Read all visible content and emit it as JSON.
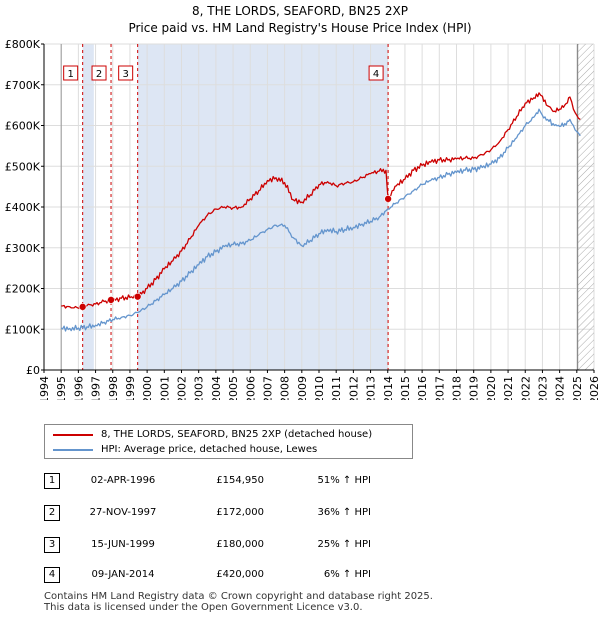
{
  "title_line1": "8, THE LORDS, SEAFORD, BN25 2XP",
  "title_line2": "Price paid vs. HM Land Registry's House Price Index (HPI)",
  "colors": {
    "property": "#cc0000",
    "hpi": "#6495cd",
    "shade": "#dde6f4",
    "grid": "#dddddd",
    "marker_line": "#cc0000"
  },
  "legend": {
    "property_label": "8, THE LORDS, SEAFORD, BN25 2XP (detached house)",
    "hpi_label": "HPI: Average price, detached house, Lewes"
  },
  "sales": [
    {
      "num": "1",
      "date": "02-APR-1996",
      "price": "£154,950",
      "hpi": "51% ↑ HPI"
    },
    {
      "num": "2",
      "date": "27-NOV-1997",
      "price": "£172,000",
      "hpi": "36% ↑ HPI"
    },
    {
      "num": "3",
      "date": "15-JUN-1999",
      "price": "£180,000",
      "hpi": "25% ↑ HPI"
    },
    {
      "num": "4",
      "date": "09-JAN-2014",
      "price": "£420,000",
      "hpi": "6% ↑ HPI"
    }
  ],
  "footer": {
    "line1": "Contains HM Land Registry data © Crown copyright and database right 2025.",
    "line2": "This data is licensed under the Open Government Licence v3.0."
  },
  "chart_data": {
    "type": "line",
    "title": "8, THE LORDS, SEAFORD, BN25 2XP — Price paid vs. HM Land Registry's House Price Index (HPI)",
    "xlabel": "",
    "ylabel": "",
    "xlim": [
      1994,
      2026
    ],
    "ylim": [
      0,
      800000
    ],
    "y_ticks": [
      0,
      100000,
      200000,
      300000,
      400000,
      500000,
      600000,
      700000,
      800000
    ],
    "y_tick_labels": [
      "£0",
      "£100K",
      "£200K",
      "£300K",
      "£400K",
      "£500K",
      "£600K",
      "£700K",
      "£800K"
    ],
    "x_ticks": [
      "1994",
      "1995",
      "1996",
      "1997",
      "1998",
      "1999",
      "2000",
      "2001",
      "2002",
      "2003",
      "2004",
      "2005",
      "2006",
      "2007",
      "2008",
      "2009",
      "2010",
      "2011",
      "2012",
      "2013",
      "2014",
      "2015",
      "2016",
      "2017",
      "2018",
      "2019",
      "2020",
      "2021",
      "2022",
      "2023",
      "2024",
      "2025",
      "2026"
    ],
    "data_start_year": 1995,
    "data_end_year": 2025.3,
    "hatch_from_year": 2025.05,
    "shaded_ranges": [
      [
        1996.25,
        1996.9
      ],
      [
        1999.45,
        2014.02
      ]
    ],
    "sale_markers": [
      {
        "label": "1",
        "year": 1996.25,
        "price": 154950
      },
      {
        "label": "2",
        "year": 1997.9,
        "price": 172000
      },
      {
        "label": "3",
        "year": 1999.45,
        "price": 180000
      },
      {
        "label": "4",
        "year": 2014.02,
        "price": 420000
      }
    ],
    "series": [
      {
        "name": "8, THE LORDS, SEAFORD, BN25 2XP (detached house)",
        "color": "#cc0000",
        "x": [
          1995,
          1995.5,
          1996,
          1996.25,
          1996.5,
          1997,
          1997.5,
          1997.9,
          1998,
          1998.5,
          1999,
          1999.45,
          2000,
          2000.5,
          2001,
          2001.5,
          2002,
          2002.5,
          2003,
          2003.5,
          2004,
          2004.5,
          2005,
          2005.5,
          2006,
          2006.5,
          2007,
          2007.5,
          2008,
          2008.5,
          2009,
          2009.5,
          2010,
          2010.5,
          2011,
          2011.5,
          2012,
          2012.5,
          2013,
          2013.5,
          2013.9,
          2014.02,
          2014.5,
          2015,
          2015.5,
          2016,
          2016.5,
          2017,
          2017.5,
          2018,
          2018.5,
          2019,
          2019.5,
          2020,
          2020.5,
          2021,
          2021.5,
          2022,
          2022.5,
          2022.8,
          2023,
          2023.3,
          2023.7,
          2024,
          2024.3,
          2024.6,
          2024.8,
          2025,
          2025.2
        ],
        "y": [
          157000,
          155000,
          152000,
          154950,
          158000,
          162000,
          168000,
          172000,
          170000,
          176000,
          178000,
          180000,
          200000,
          222000,
          248000,
          268000,
          292000,
          322000,
          355000,
          380000,
          395000,
          400000,
          398000,
          400000,
          420000,
          440000,
          465000,
          472000,
          460000,
          418000,
          412000,
          430000,
          455000,
          462000,
          452000,
          458000,
          462000,
          472000,
          482000,
          488000,
          490000,
          420000,
          452000,
          468000,
          490000,
          502000,
          510000,
          515000,
          515000,
          518000,
          520000,
          520000,
          528000,
          540000,
          560000,
          590000,
          622000,
          655000,
          668000,
          680000,
          672000,
          648000,
          635000,
          640000,
          650000,
          670000,
          640000,
          625000,
          615000
        ]
      },
      {
        "name": "HPI: Average price, detached house, Lewes",
        "color": "#6495cd",
        "x": [
          1995,
          1995.5,
          1996,
          1996.5,
          1997,
          1997.5,
          1998,
          1998.5,
          1999,
          1999.5,
          2000,
          2000.5,
          2001,
          2001.5,
          2002,
          2002.5,
          2003,
          2003.5,
          2004,
          2004.5,
          2005,
          2005.5,
          2006,
          2006.5,
          2007,
          2007.5,
          2008,
          2008.5,
          2009,
          2009.5,
          2010,
          2010.5,
          2011,
          2011.5,
          2012,
          2012.5,
          2013,
          2013.5,
          2014,
          2014.5,
          2015,
          2015.5,
          2016,
          2016.5,
          2017,
          2017.5,
          2018,
          2018.5,
          2019,
          2019.5,
          2020,
          2020.5,
          2021,
          2021.5,
          2022,
          2022.5,
          2022.8,
          2023,
          2023.3,
          2023.7,
          2024,
          2024.3,
          2024.6,
          2024.8,
          2025,
          2025.2
        ],
        "y": [
          103000,
          102000,
          103000,
          106000,
          110000,
          117000,
          124000,
          129000,
          134000,
          142000,
          155000,
          170000,
          185000,
          200000,
          218000,
          238000,
          258000,
          278000,
          290000,
          303000,
          308000,
          310000,
          318000,
          332000,
          345000,
          355000,
          355000,
          325000,
          305000,
          318000,
          335000,
          345000,
          340000,
          345000,
          350000,
          358000,
          365000,
          375000,
          395000,
          410000,
          425000,
          440000,
          455000,
          465000,
          472000,
          480000,
          485000,
          490000,
          492000,
          497000,
          505000,
          520000,
          545000,
          570000,
          600000,
          620000,
          640000,
          625000,
          615000,
          600000,
          598000,
          605000,
          615000,
          600000,
          585000,
          575000
        ]
      }
    ]
  }
}
